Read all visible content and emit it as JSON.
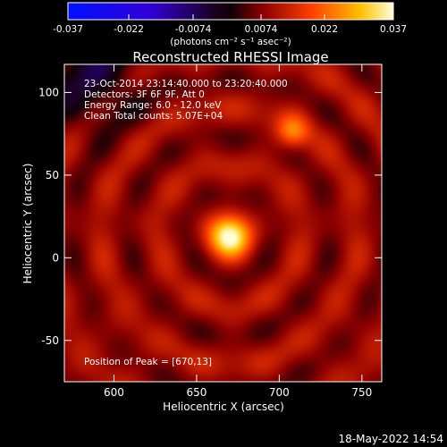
{
  "chart_data": {
    "type": "heatmap",
    "title": "Reconstructed RHESSI Image",
    "xlabel": "Heliocentric X (arcsec)",
    "ylabel": "Heliocentric Y (arcsec)",
    "xlim": [
      570,
      762
    ],
    "ylim": [
      -75,
      117
    ],
    "x_ticks": [
      600,
      650,
      700,
      750
    ],
    "y_ticks": [
      -50,
      0,
      50,
      100
    ],
    "colorbar": {
      "ticks": [
        "-0.037",
        "-0.022",
        "-0.0074",
        "0.0074",
        "0.022",
        "0.037"
      ],
      "range": [
        -0.037,
        0.037
      ],
      "unit_label": "(photons cm⁻² s⁻¹ asec⁻²)"
    },
    "info_lines": [
      "23-Oct-2014 23:14:40.000 to 23:20:40.000",
      "Detectors: 3F 6F 9F, Att 0",
      "Energy Range: 6.0 - 12.0 keV",
      "Clean    Total counts: 5.07E+04"
    ],
    "peak_label": "Position of Peak = [670,13]",
    "sources": [
      {
        "x": 670,
        "y": 13,
        "value": 0.037,
        "sigma": 8
      },
      {
        "x": 708,
        "y": 76,
        "value": 0.022,
        "sigma": 7
      }
    ]
  },
  "footer": {
    "timestamp": "18-May-2022 14:54"
  }
}
